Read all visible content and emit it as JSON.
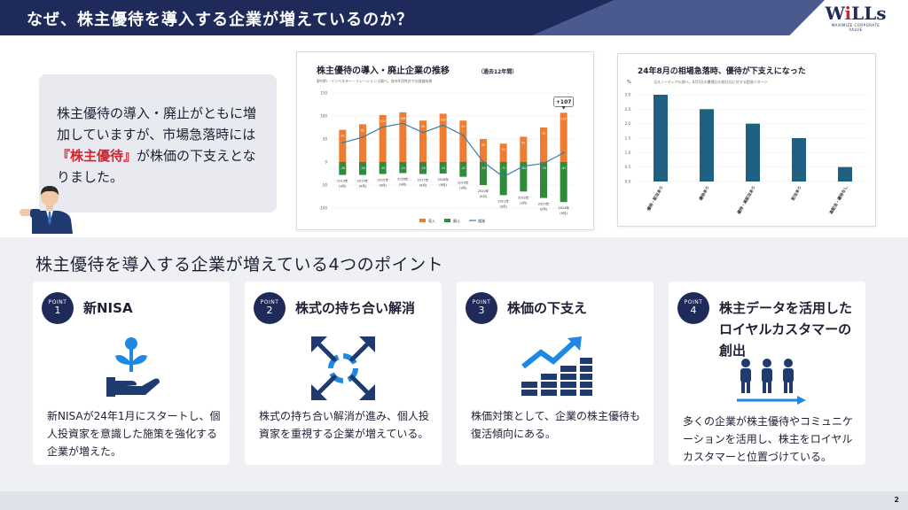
{
  "header": {
    "title": "なぜ、株主優待を導入する企業が増えているのか？"
  },
  "logo": {
    "text_main": "W",
    "text_accent": "i",
    "text_end": "LLs",
    "tagline": "MAXIMIZE CORPORATE VALUE"
  },
  "intro": {
    "text_before": "株主優待の導入・廃止がともに増加していますが、市場急落時には",
    "text_highlight": "『株主優待』",
    "text_after": "が株価の下支えとなりました。"
  },
  "chart_data": [
    {
      "type": "bar",
      "title": "株主優待の導入・廃止企業の推移",
      "title_note": "（過去12年間）",
      "subtitle": "野村IR・インベスター・リレーションズ調べ。各年9月時点での調査結果",
      "categories": [
        "2013年(9月)",
        "2014年(9月)",
        "2015年(9月)",
        "2016年(9月)",
        "2017年(9月)",
        "2018年(9月)",
        "2019年(9月)",
        "2020年(9月)",
        "2021年(9月)",
        "2022年(9月)",
        "2023年(9月)",
        "2024年(9月)"
      ],
      "ylim": [
        -100,
        150
      ],
      "yticks": [
        "150",
        "100",
        "50",
        "0",
        "-50",
        "-100"
      ],
      "series": [
        {
          "name": "導入",
          "kind": "bar",
          "color": "#ee7d31",
          "values": [
            70,
            82,
            102,
            108,
            90,
            105,
            90,
            50,
            40,
            55,
            75,
            107
          ]
        },
        {
          "name": "廃止",
          "kind": "bar",
          "color": "#2e8b3a",
          "values": [
            -28,
            -28,
            -26,
            -24,
            -26,
            -25,
            -32,
            -50,
            -72,
            -64,
            -78,
            -87
          ]
        },
        {
          "name": "増減",
          "kind": "line",
          "color": "#3a7ca8",
          "values": [
            42,
            54,
            76,
            84,
            64,
            80,
            58,
            0,
            -32,
            -9,
            -3,
            20
          ]
        }
      ],
      "bar_labels_up": [
        "70",
        "82",
        "102",
        "108",
        "90",
        "105",
        "90",
        "50",
        "40",
        "55",
        "75",
        "107"
      ],
      "bar_labels_down": [
        "-28",
        "-28",
        "-26",
        "-24",
        "-26",
        "-25",
        "-32",
        "-50",
        "-72",
        "-64",
        "-78",
        "-87"
      ],
      "callout": "+107",
      "legend": [
        "導入",
        "廃止",
        "増減"
      ]
    },
    {
      "type": "bar",
      "title": "24年8月の相場急落時、優待が下支えになった",
      "ylabel": "%",
      "subtitle": "当スノーディアル調べ。8月5日の暴落日の前日比に対する超過リターン",
      "categories": [
        "優待・配当あり",
        "優待あり",
        "優待・高配当あり",
        "配当あり",
        "高配当・優待なし"
      ],
      "values": [
        3.0,
        2.5,
        2.0,
        1.5,
        0.5
      ],
      "ylim": [
        0,
        3.0
      ],
      "yticks": [
        "3.0",
        "2.5",
        "2.0",
        "1.5",
        "1.0",
        "0.5",
        "0.0"
      ],
      "color": "#1f5f82"
    }
  ],
  "points": {
    "section_title": "株主優待を導入する企業が増えている4つのポイント",
    "badge_word": "POINT",
    "items": [
      {
        "num": "1",
        "title": "新NISA",
        "icon": "plant-in-hand-icon",
        "body": "新NISAが24年1月にスタートし、個人投資家を意識した施策を強化する企業が増えた。"
      },
      {
        "num": "2",
        "title": "株式の持ち合い解消",
        "icon": "expand-arrows-icon",
        "body": "株式の持ち合い解消が進み、個人投資家を重視する企業が増えている。"
      },
      {
        "num": "3",
        "title": "株価の下支え",
        "icon": "rising-stock-icon",
        "body": "株価対策として、企業の株主優待も復活傾向にある。"
      },
      {
        "num": "4",
        "title": "株主データを活用したロイヤルカスタマーの創出",
        "icon": "people-arrow-icon",
        "body": "多くの企業が株主優待やコミュニケーションを活用し、株主をロイヤルカスタマーと位置づけている。"
      }
    ]
  },
  "colors": {
    "navy": "#1e2a5a",
    "accent_red": "#d1242f",
    "icon_blue": "#1e88e5",
    "icon_navy": "#1e3a6e"
  },
  "footer": {
    "page_number": "2"
  }
}
